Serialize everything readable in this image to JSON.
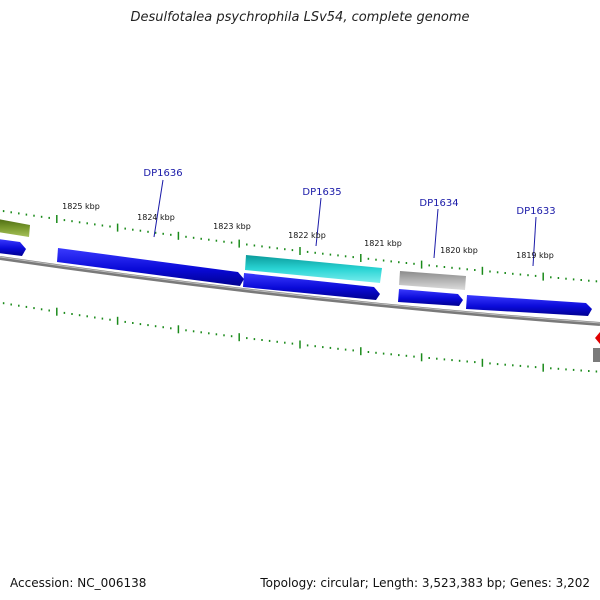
{
  "title": "Desulfotalea psychrophila LSv54, complete genome",
  "footer": {
    "accession": "Accession: NC_006138",
    "summary": "Topology: circular; Length: 3,523,383 bp; Genes: 3,202"
  },
  "colors": {
    "cds": "#1010e0",
    "highlight": "#22c8c8",
    "rna": "#a8a8a8",
    "other_green": "#6b8e23",
    "marker_red": "#e00000",
    "backbone": "#808080",
    "ticks": "#1a8a1a",
    "label": "#1a1aa8"
  },
  "tick_labels": [
    "1825 kbp",
    "1824 kbp",
    "1823 kbp",
    "1822 kbp",
    "1821 kbp",
    "1820 kbp",
    "1819 kbp"
  ],
  "gene_labels": [
    "DP1636",
    "DP1635",
    "DP1634",
    "DP1633"
  ]
}
